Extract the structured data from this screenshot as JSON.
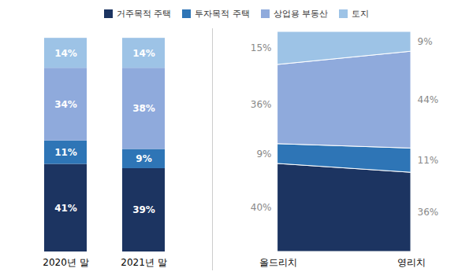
{
  "chart_data": [
    {
      "type": "bar",
      "stacked": true,
      "data_labels": true,
      "tick_labels": "x",
      "legend": "top",
      "categories": [
        "2020년 말",
        "2021년 말"
      ],
      "ylim": [
        0,
        103
      ],
      "series": [
        {
          "name": "거주목적 주택",
          "color": "#1c3461",
          "values": [
            41,
            39
          ],
          "value_labels": [
            "41%",
            "39%"
          ]
        },
        {
          "name": "투자목적 주택",
          "color": "#2e75b6",
          "values": [
            11,
            9
          ],
          "value_labels": [
            "11%",
            "9%"
          ]
        },
        {
          "name": "상업용 부동산",
          "color": "#8faadc",
          "values": [
            34,
            38
          ],
          "value_labels": [
            "34%",
            "38%"
          ]
        },
        {
          "name": "토지",
          "color": "#9dc3e6",
          "values": [
            14,
            14
          ],
          "value_labels": [
            "14%",
            "14%"
          ]
        }
      ]
    },
    {
      "type": "area",
      "stacked": true,
      "data_labels": true,
      "tick_labels": "x",
      "categories": [
        "올드리치",
        "영리치"
      ],
      "ylim": [
        0,
        100
      ],
      "series": [
        {
          "name": "거주목적 주택",
          "color": "#1c3461",
          "values": [
            40,
            36
          ],
          "value_labels": [
            "40%",
            "36%"
          ]
        },
        {
          "name": "투자목적 주택",
          "color": "#2e75b6",
          "values": [
            9,
            11
          ],
          "value_labels": [
            "9%",
            "11%"
          ]
        },
        {
          "name": "상업용 부동산",
          "color": "#8faadc",
          "values": [
            36,
            44
          ],
          "value_labels": [
            "36%",
            "44%"
          ]
        },
        {
          "name": "토지",
          "color": "#9dc3e6",
          "values": [
            15,
            9
          ],
          "value_labels": [
            "15%",
            "9%"
          ]
        }
      ]
    }
  ]
}
